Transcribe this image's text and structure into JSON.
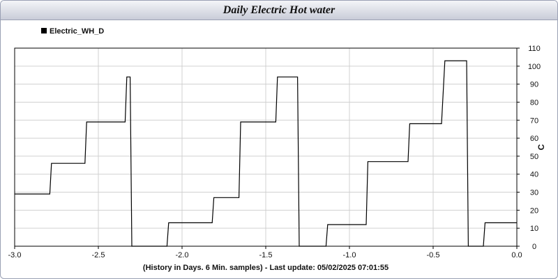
{
  "chart_data": {
    "type": "line",
    "title": "Daily Electric Hot water",
    "xlabel": "(History in Days. 6 Min. samples) - Last update: 05/02/2025 07:01:55",
    "ylabel": "C",
    "xlim": [
      -3.0,
      0.0
    ],
    "ylim": [
      0,
      110
    ],
    "x_ticks": [
      -3.0,
      -2.5,
      -2.0,
      -1.5,
      -1.0,
      -0.5,
      0.0
    ],
    "x_tick_labels": [
      "-3.0",
      "-2.5",
      "-2.0",
      "-1.5",
      "-1.0",
      "-0.5",
      "0.0"
    ],
    "y_ticks": [
      0,
      10,
      20,
      30,
      40,
      50,
      60,
      70,
      80,
      90,
      100,
      110
    ],
    "y_tick_labels": [
      "0",
      "10",
      "20",
      "30",
      "40",
      "50",
      "60",
      "70",
      "80",
      "90",
      "100",
      "110"
    ],
    "grid": true,
    "legend_position": "top-left",
    "series": [
      {
        "name": "Electric_WH_D",
        "color": "#000000",
        "points": [
          [
            -3.0,
            29
          ],
          [
            -2.79,
            29
          ],
          [
            -2.78,
            46
          ],
          [
            -2.58,
            46
          ],
          [
            -2.57,
            69
          ],
          [
            -2.34,
            69
          ],
          [
            -2.33,
            94
          ],
          [
            -2.31,
            94
          ],
          [
            -2.3,
            0
          ],
          [
            -2.09,
            0
          ],
          [
            -2.08,
            13
          ],
          [
            -1.82,
            13
          ],
          [
            -1.81,
            27
          ],
          [
            -1.66,
            27
          ],
          [
            -1.65,
            69
          ],
          [
            -1.44,
            69
          ],
          [
            -1.43,
            94
          ],
          [
            -1.31,
            94
          ],
          [
            -1.3,
            0
          ],
          [
            -1.14,
            0
          ],
          [
            -1.13,
            12
          ],
          [
            -0.9,
            12
          ],
          [
            -0.89,
            47
          ],
          [
            -0.65,
            47
          ],
          [
            -0.64,
            68
          ],
          [
            -0.45,
            68
          ],
          [
            -0.43,
            103
          ],
          [
            -0.3,
            103
          ],
          [
            -0.29,
            0
          ],
          [
            -0.2,
            0
          ],
          [
            -0.19,
            13
          ],
          [
            0.0,
            13
          ]
        ]
      }
    ]
  }
}
